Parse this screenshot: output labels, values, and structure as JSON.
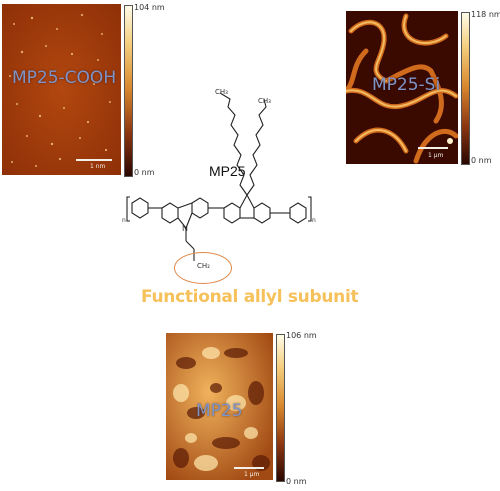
{
  "panels": {
    "top_left": {
      "label": "MP25-COOH",
      "scale_top": "104 nm",
      "scale_bottom": "0 nm",
      "scalebar": "1 nm"
    },
    "top_right": {
      "label": "MP25-Si",
      "scale_top": "118 nm",
      "scale_bottom": "0 nm",
      "scalebar": "1 μm"
    },
    "bottom": {
      "label": "MP25",
      "scale_top": "106 nm",
      "scale_bottom": "0 nm",
      "scalebar": "1 μm"
    }
  },
  "structure": {
    "title": "MP25",
    "ch3_top_a": "CH₃",
    "ch3_top_b": "CH₃",
    "n_atom": "N",
    "ch2": "CH₂",
    "n_sub_left": "n",
    "n_sub_right": "n",
    "caption": "Functional allyl subunit"
  },
  "colors": {
    "afm_dark": "#3a0a00",
    "afm_mid": "#b4501a",
    "afm_light": "#f6d48f",
    "label_blue": "#7e93c8",
    "caption_gold": "#f6c15a",
    "circle_orange": "#e0894a"
  }
}
